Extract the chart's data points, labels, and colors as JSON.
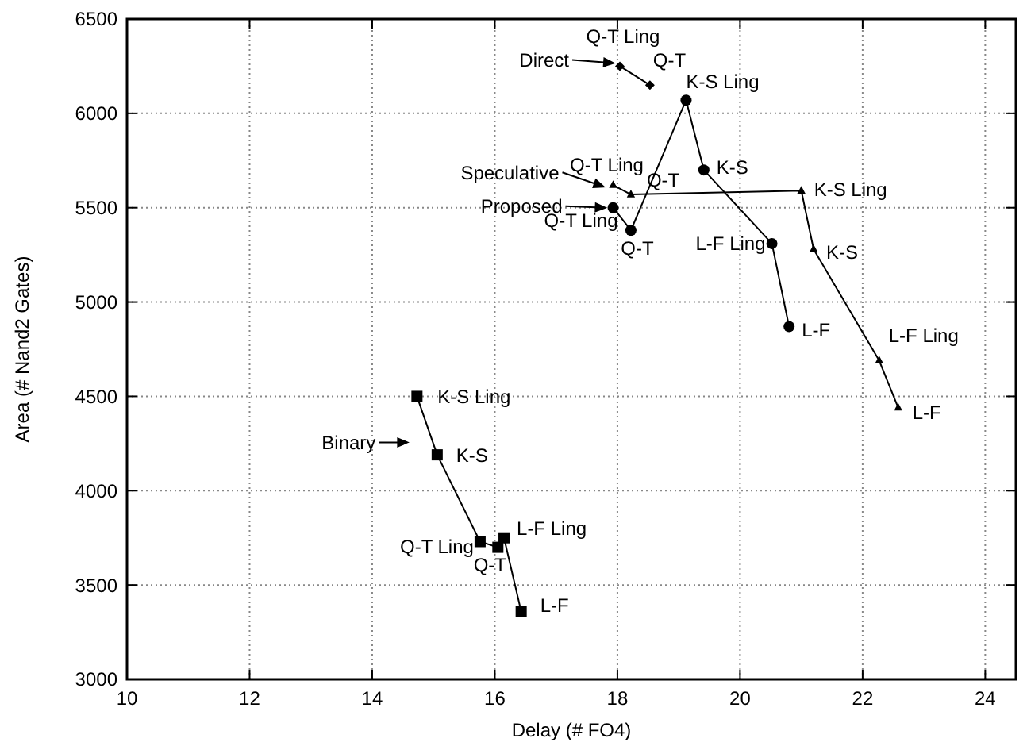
{
  "chart_data": {
    "type": "line",
    "xlabel": "Delay (# FO4)",
    "ylabel": "Area (# Nand2 Gates)",
    "xlim": [
      10,
      24.5
    ],
    "xticks": [
      10,
      12,
      14,
      16,
      18,
      20,
      22,
      24
    ],
    "ylim": [
      3000,
      6500
    ],
    "yticks": [
      3000,
      3500,
      4000,
      4500,
      5000,
      5500,
      6000,
      6500
    ],
    "grid": true,
    "series": [
      {
        "color": "#000000",
        "marker": "diamond",
        "x": [
          18.04,
          18.53
        ],
        "values": [
          6250,
          6150
        ]
      },
      {
        "color": "#000000",
        "marker": "triangle",
        "x": [
          17.93,
          18.22,
          21.0,
          21.2,
          22.27,
          22.58
        ],
        "values": [
          5620,
          5570,
          5590,
          5280,
          4690,
          4440
        ]
      },
      {
        "color": "#000000",
        "marker": "circle",
        "x": [
          17.93,
          18.22,
          19.12,
          19.41,
          20.52,
          20.8
        ],
        "values": [
          5500,
          5380,
          6070,
          5700,
          5310,
          4870
        ]
      },
      {
        "color": "#000000",
        "marker": "square",
        "x": [
          14.73,
          15.06,
          15.76,
          16.05,
          16.15,
          16.43
        ],
        "values": [
          4500,
          4190,
          3730,
          3700,
          3750,
          3360
        ]
      }
    ],
    "annotations": [
      {
        "text": "Q-T Ling",
        "x": 18.04,
        "y": 6250
      },
      {
        "text": "Q-T",
        "x": 18.53,
        "y": 6150
      },
      {
        "text": "Q-T Ling",
        "x": 17.93,
        "y": 5620
      },
      {
        "text": "Q-T",
        "x": 18.22,
        "y": 5570
      },
      {
        "text": "K-S Ling",
        "x": 21.0,
        "y": 5590
      },
      {
        "text": "K-S",
        "x": 21.2,
        "y": 5280
      },
      {
        "text": "L-F Ling",
        "x": 22.27,
        "y": 4690
      },
      {
        "text": "L-F",
        "x": 22.58,
        "y": 4440
      },
      {
        "text": "Q-T Ling",
        "x": 17.93,
        "y": 5500
      },
      {
        "text": "Q-T",
        "x": 18.22,
        "y": 5380
      },
      {
        "text": "K-S Ling",
        "x": 19.12,
        "y": 6070
      },
      {
        "text": "K-S",
        "x": 19.41,
        "y": 5700
      },
      {
        "text": "L-F Ling",
        "x": 20.52,
        "y": 5310
      },
      {
        "text": "L-F",
        "x": 20.8,
        "y": 4870
      },
      {
        "text": "K-S Ling",
        "x": 14.73,
        "y": 4500
      },
      {
        "text": "K-S",
        "x": 15.06,
        "y": 4190
      },
      {
        "text": "Q-T Ling",
        "x": 15.76,
        "y": 3730
      },
      {
        "text": "Q-T",
        "x": 16.05,
        "y": 3700
      },
      {
        "text": "L-F Ling",
        "x": 16.15,
        "y": 3750
      },
      {
        "text": "L-F",
        "x": 16.43,
        "y": 3360
      },
      {
        "text": "Direct",
        "x": 18.04,
        "y": 6250
      },
      {
        "text": "Speculative",
        "x": 17.93,
        "y": 5620
      },
      {
        "text": "Proposed",
        "x": 17.93,
        "y": 5500
      },
      {
        "text": "Binary",
        "x": 14.73,
        "y": 4500
      }
    ]
  }
}
